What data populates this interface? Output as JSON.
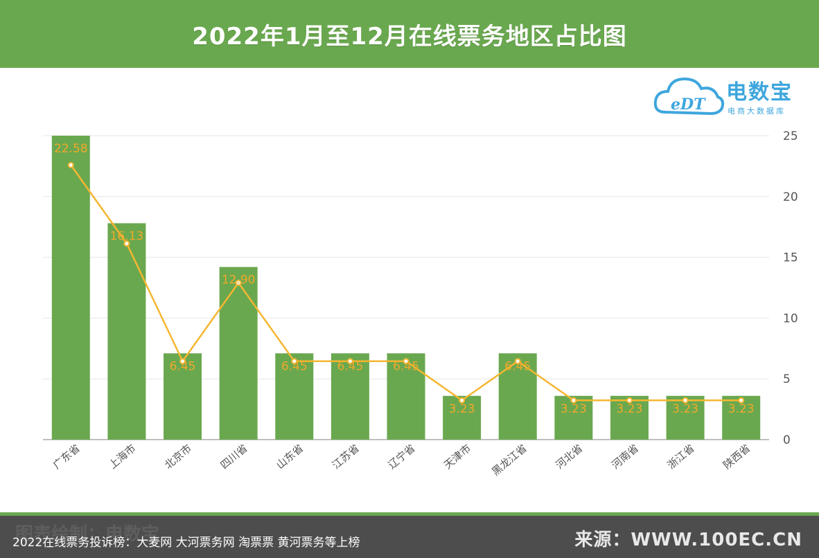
{
  "header": {
    "title": "2022年1月至12月在线票务地区占比图"
  },
  "logo": {
    "brand": "电数宝",
    "tagline": "电商大数据库",
    "cloud_text": "eDT"
  },
  "chart_data": {
    "type": "bar",
    "title": "2022年1月至12月在线票务地区占比图",
    "categories": [
      "广东省",
      "上海市",
      "北京市",
      "四川省",
      "山东省",
      "江苏省",
      "辽宁省",
      "天津市",
      "黑龙江省",
      "河北省",
      "河南省",
      "浙江省",
      "陕西省"
    ],
    "series": [
      {
        "type": "bar",
        "values": [
          25.0,
          17.8,
          7.1,
          14.2,
          7.1,
          7.1,
          7.1,
          3.6,
          7.1,
          3.6,
          3.6,
          3.6,
          3.6
        ]
      },
      {
        "type": "line",
        "values": [
          22.58,
          16.13,
          6.45,
          12.9,
          6.45,
          6.45,
          6.45,
          3.23,
          6.45,
          3.23,
          3.23,
          3.23,
          3.23
        ]
      }
    ],
    "data_labels": [
      "22.58",
      "16.13",
      "6.45",
      "12.90",
      "6.45",
      "6.45",
      "6.45",
      "3.23",
      "6.45",
      "3.23",
      "3.23",
      "3.23",
      "3.23"
    ],
    "y_ticks": [
      "0",
      "5",
      "10",
      "15",
      "20",
      "25"
    ],
    "ylim": [
      0,
      25
    ],
    "y_axis_position": "right",
    "grid": true,
    "colors": {
      "bar": "#6aa84f",
      "line": "#f5b630",
      "label": "#f0a92a",
      "grid": "#e6e6e6",
      "axis_text": "#555555"
    }
  },
  "footer": {
    "left_text": "图表绘制：电数宝",
    "caption": "2022在线票务投诉榜：大麦网 大河票务网 淘票票 黄河票务等上榜",
    "source": "来源：WWW.100EC.CN"
  }
}
